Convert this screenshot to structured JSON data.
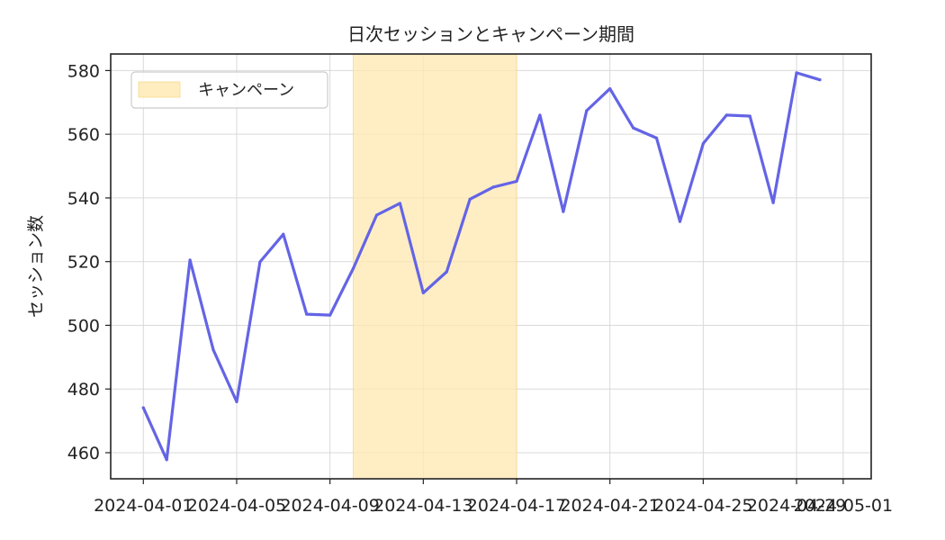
{
  "chart_data": {
    "type": "line",
    "title": "日次セッションとキャンペーン期間",
    "xlabel": "",
    "ylabel": "セッション数",
    "x_ticks": [
      "2024-04-01",
      "2024-04-05",
      "2024-04-09",
      "2024-04-13",
      "2024-04-17",
      "2024-04-21",
      "2024-04-25",
      "2024-04-29",
      "2024-05-01"
    ],
    "y_ticks": [
      460,
      480,
      500,
      520,
      540,
      560,
      580
    ],
    "xlim": [
      "2024-03-30.6",
      "2024-05-02.2"
    ],
    "ylim": [
      451.8,
      585.2
    ],
    "grid": true,
    "legend_position": "top-left",
    "series": [
      {
        "color": "#6464e6",
        "x": [
          "2024-04-01",
          "2024-04-02",
          "2024-04-03",
          "2024-04-04",
          "2024-04-05",
          "2024-04-06",
          "2024-04-07",
          "2024-04-08",
          "2024-04-09",
          "2024-04-10",
          "2024-04-11",
          "2024-04-12",
          "2024-04-13",
          "2024-04-14",
          "2024-04-15",
          "2024-04-16",
          "2024-04-17",
          "2024-04-18",
          "2024-04-19",
          "2024-04-20",
          "2024-04-21",
          "2024-04-22",
          "2024-04-23",
          "2024-04-24",
          "2024-04-25",
          "2024-04-26",
          "2024-04-27",
          "2024-04-28",
          "2024-04-29",
          "2024-04-30"
        ],
        "values": [
          474.1,
          457.8,
          520.5,
          492.3,
          476.0,
          519.9,
          528.6,
          503.5,
          503.2,
          517.9,
          534.6,
          538.3,
          510.2,
          516.8,
          539.6,
          543.4,
          545.2,
          566.0,
          535.7,
          567.4,
          574.3,
          562.0,
          558.8,
          532.6,
          557.1,
          566.0,
          565.7,
          538.5,
          579.3,
          577.1
        ]
      }
    ],
    "shaded_region": {
      "label": "キャンペーン",
      "start": "2024-04-10",
      "end": "2024-04-17",
      "color": "#ffe8b0"
    }
  }
}
